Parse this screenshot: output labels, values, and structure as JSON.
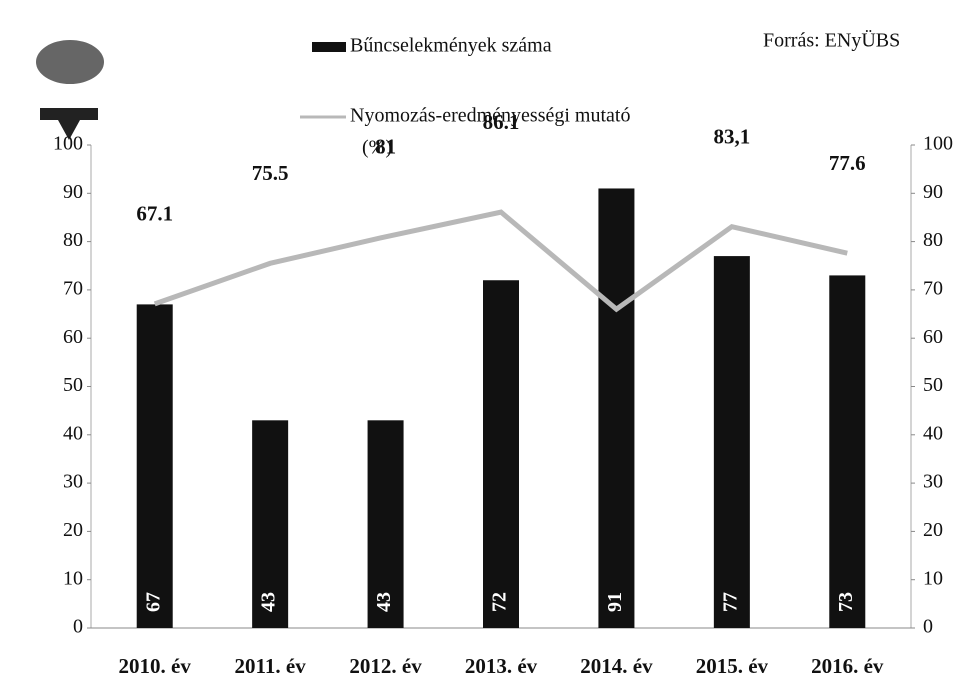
{
  "chart_data": {
    "type": "bar",
    "categories": [
      "2010. év",
      "2011. év",
      "2012. év",
      "2013. év",
      "2014. év",
      "2015. év",
      "2016. év"
    ],
    "series": [
      {
        "name": "Bűncselekmények száma",
        "color": "#111111",
        "values": [
          67,
          43,
          43,
          72,
          91,
          77,
          73
        ]
      },
      {
        "name": "Nyomozás-eredményességi mutató",
        "unit": "(%)",
        "type": "line",
        "axis": "y2",
        "color": "#b8b8b8",
        "values": [
          67.1,
          75.5,
          81,
          86.1,
          66,
          83.1,
          77.6
        ],
        "value_labels": [
          "67.1",
          "75.5",
          "81",
          "86.1",
          null,
          "83,1",
          "77.6"
        ]
      }
    ],
    "ylim": [
      0,
      100
    ],
    "yticks": [
      0,
      10,
      20,
      30,
      40,
      50,
      60,
      70,
      80,
      90,
      100
    ],
    "y2lim": [
      0,
      100
    ],
    "y2ticks": [
      0,
      10,
      20,
      30,
      40,
      50,
      60,
      70,
      80,
      90,
      100
    ],
    "annotation": "Forrás: ENyÜBS"
  }
}
